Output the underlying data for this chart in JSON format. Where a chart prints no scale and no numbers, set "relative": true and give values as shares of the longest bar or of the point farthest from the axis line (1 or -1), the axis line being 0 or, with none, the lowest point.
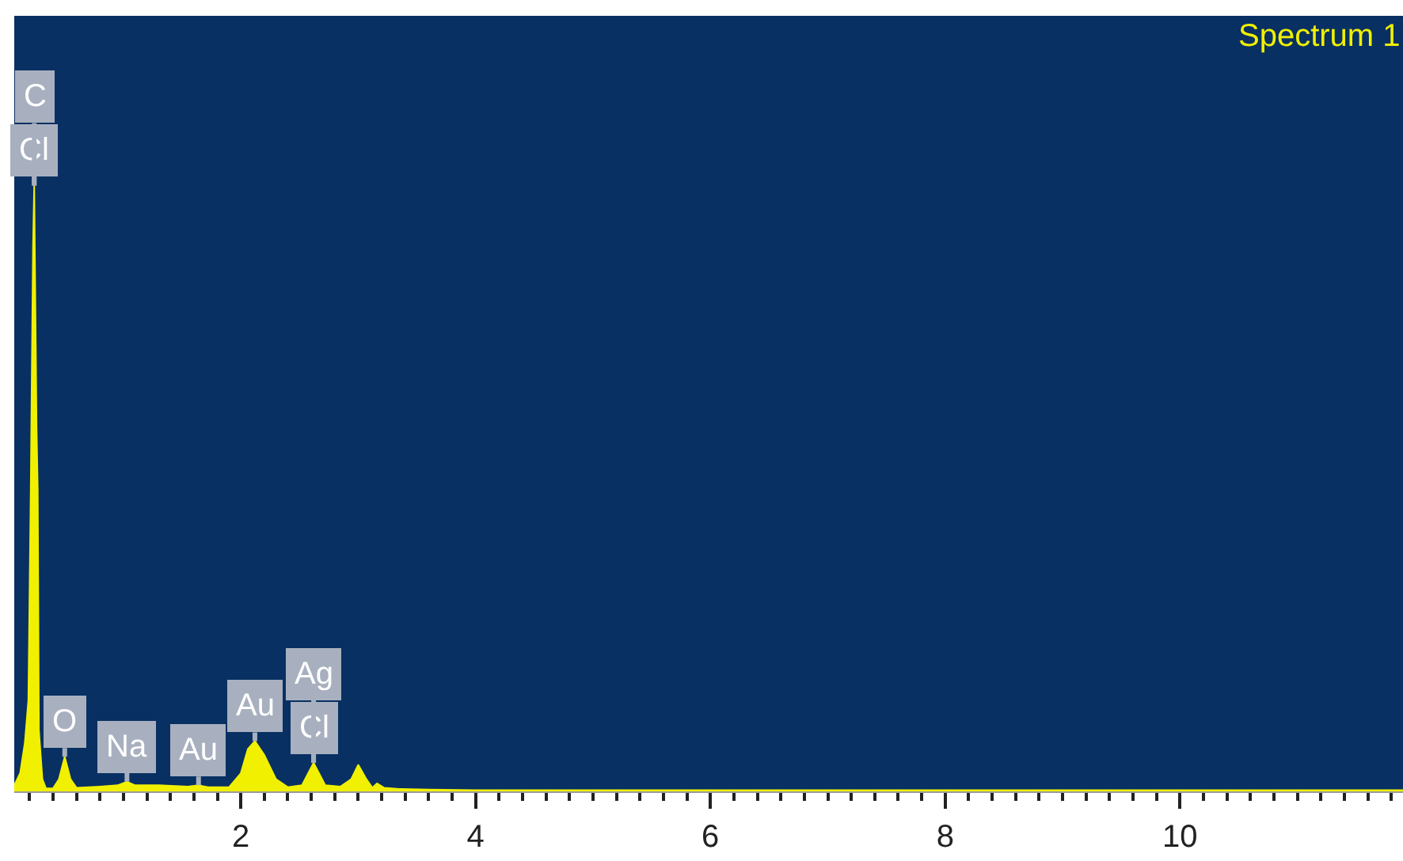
{
  "chart_data": {
    "type": "area",
    "relative": true,
    "xlim": [
      0.07,
      11.9
    ],
    "xticks": [
      2,
      4,
      6,
      8,
      10
    ],
    "grid": false,
    "series": [
      {
        "name": "Spectrum 1",
        "color": "#f0f000",
        "x": [
          0.07,
          0.12,
          0.16,
          0.19,
          0.21,
          0.23,
          0.24,
          0.26,
          0.27,
          0.28,
          0.31,
          0.34,
          0.4,
          0.45,
          0.5,
          0.55,
          0.6,
          0.8,
          0.95,
          1.03,
          1.1,
          1.3,
          1.55,
          1.64,
          1.72,
          1.9,
          2.0,
          2.06,
          2.12,
          2.2,
          2.3,
          2.4,
          2.52,
          2.62,
          2.72,
          2.85,
          2.94,
          3.0,
          3.07,
          3.12,
          3.16,
          3.22,
          3.35,
          3.6,
          4.0,
          6.0,
          8.0,
          10.0,
          11.9
        ],
        "values": [
          0.01,
          0.03,
          0.08,
          0.15,
          0.49,
          0.9,
          1.0,
          0.6,
          0.5,
          0.1,
          0.02,
          0.005,
          0.005,
          0.02,
          0.057,
          0.02,
          0.006,
          0.008,
          0.01,
          0.016,
          0.01,
          0.01,
          0.008,
          0.01,
          0.007,
          0.007,
          0.03,
          0.07,
          0.083,
          0.06,
          0.02,
          0.007,
          0.01,
          0.047,
          0.01,
          0.008,
          0.02,
          0.044,
          0.02,
          0.006,
          0.013,
          0.006,
          0.004,
          0.003,
          0.002,
          0.002,
          0.002,
          0.002,
          0.002
        ]
      }
    ],
    "annotations": [
      {
        "text": "Cl",
        "x": 0.24,
        "y": 1.0
      },
      {
        "text": "C",
        "x": 0.24,
        "y": 1.0
      },
      {
        "text": "O",
        "x": 0.5,
        "y": 0.057
      },
      {
        "text": "Na",
        "x": 1.03,
        "y": 0.016
      },
      {
        "text": "Au",
        "x": 1.64,
        "y": 0.01
      },
      {
        "text": "Au",
        "x": 2.12,
        "y": 0.083
      },
      {
        "text": "Cl",
        "x": 2.62,
        "y": 0.047
      },
      {
        "text": "Ag",
        "x": 2.62,
        "y": 0.047
      }
    ]
  }
}
